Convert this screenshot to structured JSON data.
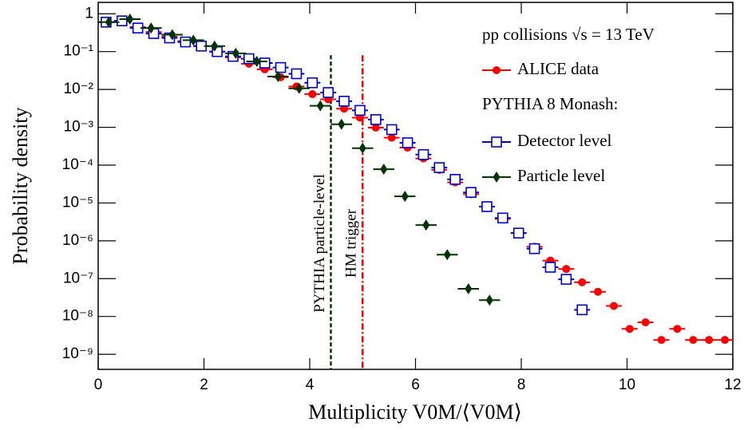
{
  "chart_data": {
    "type": "scatter",
    "x_label": "Multiplicity V0M/⟨V0M⟩",
    "y_label": "Probability density",
    "log_y": true,
    "xlim": [
      0,
      12
    ],
    "ylim": [
      4e-10,
      2
    ],
    "xticks": [
      0,
      2,
      4,
      6,
      8,
      10,
      12
    ],
    "yticks": [
      1,
      {
        "value": 0.1,
        "label": "10⁻¹"
      },
      {
        "value": 0.01,
        "label": "10⁻²"
      },
      {
        "value": 0.001,
        "label": "10⁻³"
      },
      {
        "value": 0.0001,
        "label": "10⁻⁴"
      },
      {
        "value": 1e-05,
        "label": "10⁻⁵"
      },
      {
        "value": 1e-06,
        "label": "10⁻⁶"
      },
      {
        "value": 1e-07,
        "label": "10⁻⁷"
      },
      {
        "value": 1e-08,
        "label": "10⁻⁸"
      },
      {
        "value": 1e-09,
        "label": "10⁻⁹"
      }
    ],
    "legend_position": "upper right",
    "legend_header": "pp collisions √s = 13 TeV",
    "legend_subheader": "PYTHIA 8 Monash:",
    "series": [
      {
        "name": "ALICE data",
        "color": "#ff0000",
        "marker": "circle",
        "xerr": 0.15,
        "x": [
          0.15,
          0.45,
          0.75,
          1.05,
          1.35,
          1.65,
          1.95,
          2.25,
          2.55,
          2.85,
          3.15,
          3.45,
          3.75,
          4.05,
          4.35,
          4.65,
          4.95,
          5.25,
          5.55,
          5.85,
          6.15,
          6.45,
          6.75,
          7.05,
          7.35,
          7.65,
          7.95,
          8.25,
          8.55,
          8.85,
          9.15,
          9.45,
          9.75,
          10.05,
          10.35,
          10.65,
          10.95,
          11.25,
          11.55,
          11.85
        ],
        "values": [
          0.6,
          0.65,
          0.45,
          0.33,
          0.25,
          0.19,
          0.14,
          0.1,
          0.07,
          0.048,
          0.034,
          0.021,
          0.012,
          0.0075,
          0.0055,
          0.0031,
          0.0018,
          0.00098,
          0.00053,
          0.00029,
          0.00015,
          7.5e-05,
          3.5e-05,
          1.7e-05,
          8e-06,
          3.8e-06,
          1.6e-06,
          7e-07,
          3e-07,
          1.8e-07,
          8e-08,
          4.5e-08,
          1.9e-08,
          4.7e-09,
          7e-09,
          2.4e-09,
          4.7e-09,
          2.4e-09,
          2.4e-09,
          2.4e-09
        ]
      },
      {
        "name": "Detector level",
        "color": "#0000cc",
        "marker": "open-square",
        "xerr": 0.15,
        "x": [
          0.15,
          0.45,
          0.75,
          1.05,
          1.35,
          1.65,
          1.95,
          2.25,
          2.55,
          2.85,
          3.15,
          3.45,
          3.75,
          4.05,
          4.35,
          4.65,
          4.95,
          5.25,
          5.55,
          5.85,
          6.15,
          6.45,
          6.75,
          7.05,
          7.35,
          7.65,
          7.95,
          8.25,
          8.55,
          8.85,
          9.15
        ],
        "values": [
          0.6,
          0.65,
          0.42,
          0.3,
          0.23,
          0.18,
          0.14,
          0.1,
          0.075,
          0.065,
          0.05,
          0.038,
          0.026,
          0.015,
          0.0083,
          0.0049,
          0.0028,
          0.0016,
          0.00087,
          0.00039,
          0.00019,
          8.6e-05,
          4.2e-05,
          1.9e-05,
          8e-06,
          4e-06,
          1.6e-06,
          6.2e-07,
          2e-07,
          9.6e-08,
          1.5e-08
        ]
      },
      {
        "name": "Particle level",
        "color": "#003300",
        "marker": "diamond",
        "xerr": 0.2,
        "x": [
          0.2,
          0.6,
          1.0,
          1.4,
          1.8,
          2.2,
          2.6,
          3.0,
          3.4,
          3.8,
          4.2,
          4.6,
          5.0,
          5.4,
          5.8,
          6.2,
          6.6,
          7.0,
          7.4
        ],
        "values": [
          0.6,
          0.72,
          0.42,
          0.28,
          0.2,
          0.14,
          0.09,
          0.055,
          0.022,
          0.0107,
          0.0037,
          0.0012,
          0.00028,
          7.8e-05,
          1.5e-05,
          2.6e-06,
          4.3e-07,
          5.4e-08,
          2.7e-08
        ]
      }
    ],
    "annotations": [
      {
        "text": "PYTHIA particle-level",
        "x": 4.4,
        "color": "#003300",
        "style": "dashed"
      },
      {
        "text": "HM trigger",
        "x": 5.0,
        "color": "#ff0000",
        "style": "dashdot"
      }
    ]
  }
}
